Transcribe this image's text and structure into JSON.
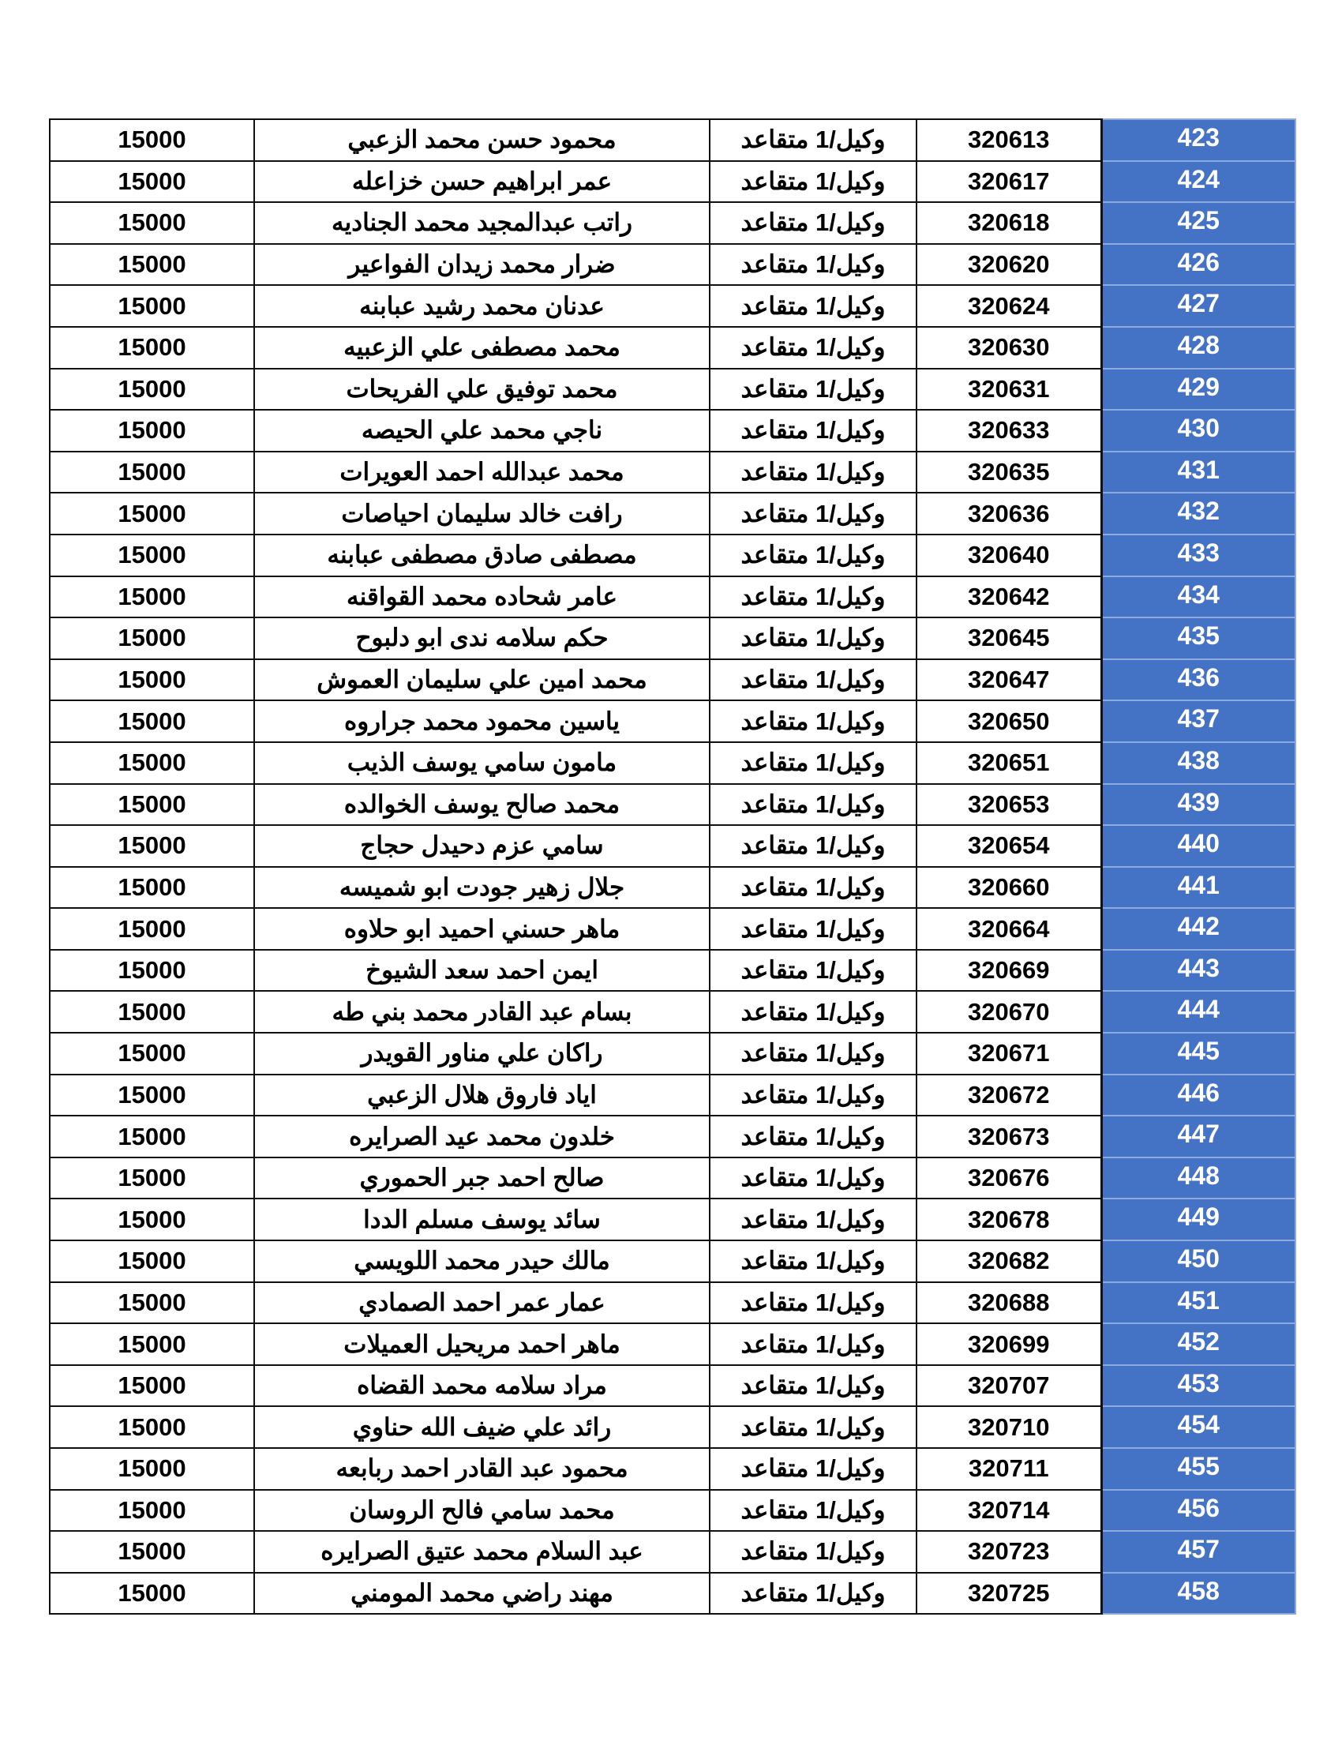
{
  "table": {
    "columns": [
      "amount",
      "name",
      "rank",
      "id",
      "number"
    ],
    "colors": {
      "number_bg": "#4472C4",
      "number_border": "#8EA9DB",
      "number_text": "#FFFFFF"
    },
    "rows": [
      {
        "number": "423",
        "id": "320613",
        "rank": "وكيل/1 متقاعد",
        "name": "محمود حسن محمد الزعبي",
        "amount": "15000"
      },
      {
        "number": "424",
        "id": "320617",
        "rank": "وكيل/1 متقاعد",
        "name": "عمر ابراهيم حسن خزاعله",
        "amount": "15000"
      },
      {
        "number": "425",
        "id": "320618",
        "rank": "وكيل/1 متقاعد",
        "name": "راتب عبدالمجيد محمد الجناديه",
        "amount": "15000"
      },
      {
        "number": "426",
        "id": "320620",
        "rank": "وكيل/1 متقاعد",
        "name": "ضرار محمد زيدان الفواعير",
        "amount": "15000"
      },
      {
        "number": "427",
        "id": "320624",
        "rank": "وكيل/1 متقاعد",
        "name": "عدنان محمد رشيد عبابنه",
        "amount": "15000"
      },
      {
        "number": "428",
        "id": "320630",
        "rank": "وكيل/1 متقاعد",
        "name": "محمد مصطفى علي الزعبيه",
        "amount": "15000"
      },
      {
        "number": "429",
        "id": "320631",
        "rank": "وكيل/1 متقاعد",
        "name": "محمد توفيق علي الفريحات",
        "amount": "15000"
      },
      {
        "number": "430",
        "id": "320633",
        "rank": "وكيل/1 متقاعد",
        "name": "ناجي محمد علي الحيصه",
        "amount": "15000"
      },
      {
        "number": "431",
        "id": "320635",
        "rank": "وكيل/1 متقاعد",
        "name": "محمد عبدالله احمد العويرات",
        "amount": "15000"
      },
      {
        "number": "432",
        "id": "320636",
        "rank": "وكيل/1 متقاعد",
        "name": "رافت خالد سليمان احياصات",
        "amount": "15000"
      },
      {
        "number": "433",
        "id": "320640",
        "rank": "وكيل/1 متقاعد",
        "name": "مصطفى صادق مصطفى عبابنه",
        "amount": "15000"
      },
      {
        "number": "434",
        "id": "320642",
        "rank": "وكيل/1 متقاعد",
        "name": "عامر شحاده محمد القواقنه",
        "amount": "15000"
      },
      {
        "number": "435",
        "id": "320645",
        "rank": "وكيل/1 متقاعد",
        "name": "حكم سلامه ندى ابو دلبوح",
        "amount": "15000"
      },
      {
        "number": "436",
        "id": "320647",
        "rank": "وكيل/1 متقاعد",
        "name": "محمد امين علي سليمان العموش",
        "amount": "15000"
      },
      {
        "number": "437",
        "id": "320650",
        "rank": "وكيل/1 متقاعد",
        "name": "ياسين محمود محمد جراروه",
        "amount": "15000"
      },
      {
        "number": "438",
        "id": "320651",
        "rank": "وكيل/1 متقاعد",
        "name": "مامون سامي يوسف الذيب",
        "amount": "15000"
      },
      {
        "number": "439",
        "id": "320653",
        "rank": "وكيل/1 متقاعد",
        "name": "محمد صالح يوسف الخوالده",
        "amount": "15000"
      },
      {
        "number": "440",
        "id": "320654",
        "rank": "وكيل/1 متقاعد",
        "name": "سامي عزم دحيدل حجاج",
        "amount": "15000"
      },
      {
        "number": "441",
        "id": "320660",
        "rank": "وكيل/1 متقاعد",
        "name": "جلال زهير جودت ابو شميسه",
        "amount": "15000"
      },
      {
        "number": "442",
        "id": "320664",
        "rank": "وكيل/1 متقاعد",
        "name": "ماهر حسني احميد ابو حلاوه",
        "amount": "15000"
      },
      {
        "number": "443",
        "id": "320669",
        "rank": "وكيل/1 متقاعد",
        "name": "ايمن احمد سعد الشيوخ",
        "amount": "15000"
      },
      {
        "number": "444",
        "id": "320670",
        "rank": "وكيل/1 متقاعد",
        "name": "بسام عبد القادر محمد بني طه",
        "amount": "15000"
      },
      {
        "number": "445",
        "id": "320671",
        "rank": "وكيل/1 متقاعد",
        "name": "راكان علي مناور القويدر",
        "amount": "15000"
      },
      {
        "number": "446",
        "id": "320672",
        "rank": "وكيل/1 متقاعد",
        "name": "اياد فاروق هلال الزعبي",
        "amount": "15000"
      },
      {
        "number": "447",
        "id": "320673",
        "rank": "وكيل/1 متقاعد",
        "name": "خلدون محمد عيد الصرايره",
        "amount": "15000"
      },
      {
        "number": "448",
        "id": "320676",
        "rank": "وكيل/1 متقاعد",
        "name": "صالح احمد جبر الحموري",
        "amount": "15000"
      },
      {
        "number": "449",
        "id": "320678",
        "rank": "وكيل/1 متقاعد",
        "name": "سائد يوسف مسلم الددا",
        "amount": "15000"
      },
      {
        "number": "450",
        "id": "320682",
        "rank": "وكيل/1 متقاعد",
        "name": "مالك حيدر محمد اللويسي",
        "amount": "15000"
      },
      {
        "number": "451",
        "id": "320688",
        "rank": "وكيل/1 متقاعد",
        "name": "عمار عمر احمد الصمادي",
        "amount": "15000"
      },
      {
        "number": "452",
        "id": "320699",
        "rank": "وكيل/1 متقاعد",
        "name": "ماهر احمد مريحيل العميلات",
        "amount": "15000"
      },
      {
        "number": "453",
        "id": "320707",
        "rank": "وكيل/1 متقاعد",
        "name": "مراد سلامه محمد القضاه",
        "amount": "15000"
      },
      {
        "number": "454",
        "id": "320710",
        "rank": "وكيل/1 متقاعد",
        "name": "رائد علي ضيف الله حناوي",
        "amount": "15000"
      },
      {
        "number": "455",
        "id": "320711",
        "rank": "وكيل/1 متقاعد",
        "name": "محمود عبد القادر احمد ربابعه",
        "amount": "15000"
      },
      {
        "number": "456",
        "id": "320714",
        "rank": "وكيل/1 متقاعد",
        "name": "محمد سامي فالح الروسان",
        "amount": "15000"
      },
      {
        "number": "457",
        "id": "320723",
        "rank": "وكيل/1 متقاعد",
        "name": "عبد السلام محمد عتيق الصرايره",
        "amount": "15000"
      },
      {
        "number": "458",
        "id": "320725",
        "rank": "وكيل/1 متقاعد",
        "name": "مهند راضي محمد المومني",
        "amount": "15000"
      }
    ]
  }
}
